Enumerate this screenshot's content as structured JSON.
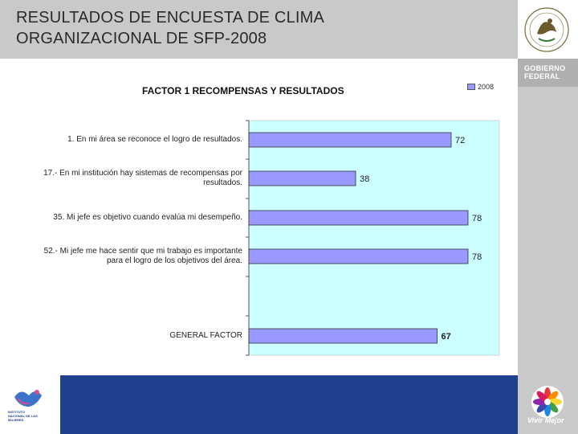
{
  "header": {
    "title_line1": "RESULTADOS DE ENCUESTA DE CLIMA",
    "title_line2": "ORGANIZACIONAL DE SFP-2008"
  },
  "branding": {
    "gov_line1": "GOBIERNO",
    "gov_line2": "FEDERAL",
    "vivir": "Vivir Mejor",
    "institute_text": "INSTITUTO NACIONAL DE LAS MUJERES"
  },
  "colors": {
    "bar_fill": "#9999ff",
    "plot_bg": "#ccffff",
    "bottom_band": "#1f3f8f",
    "header_band": "#c9c9c9"
  },
  "chart_data": {
    "type": "bar",
    "orientation": "horizontal",
    "title": "FACTOR 1 RECOMPENSAS Y RESULTADOS",
    "legend_position": "top-right",
    "series": [
      {
        "name": "2008",
        "values": [
          72,
          38,
          78,
          78,
          67
        ]
      }
    ],
    "categories": [
      "1. En mi área se reconoce el logro de resultados.",
      "17.- En mi institución hay sistemas de recompensas por resultados.",
      "35. Mi jefe es objetivo cuando evalúa mi desempeño.",
      "52.- Mi jefe me hace sentir que mi trabajo es importante para el logro de los objetivos del área.",
      "GENERAL FACTOR"
    ],
    "category_labels": [
      [
        "1.  En mi área se reconoce el logro de resultados."
      ],
      [
        "17.-  En mi institución hay sistemas de recompensas por",
        "resultados."
      ],
      [
        "35.  Mi jefe es objetivo cuando evalúa mi desempeño."
      ],
      [
        "52.-  Mi jefe me hace sentir que mi trabajo es importante",
        "para el logro de los objetivos del área."
      ],
      [
        "GENERAL FACTOR"
      ]
    ],
    "data_labels": [
      "72",
      "38",
      "78",
      "78",
      "67"
    ],
    "highlight_last_label": true,
    "xlim": [
      0,
      100
    ],
    "grid": false
  }
}
